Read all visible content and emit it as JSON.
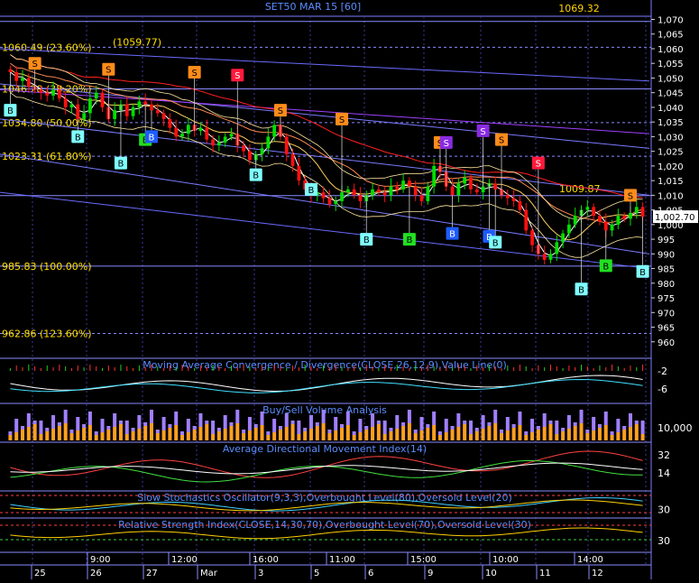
{
  "chart_data": [
    {
      "type": "candlestick",
      "title": "SET50 MAR 15   [60]",
      "top_value_label": "1069.32",
      "last_price_label": "1,002.70",
      "ylim": [
        955,
        1072
      ],
      "y_ticks": [
        "1,070",
        "1,065",
        "1,060",
        "1,055",
        "1,050",
        "1,045",
        "1,040",
        "1,035",
        "1,030",
        "1,025",
        "1,020",
        "1,015",
        "1,010",
        "1,005",
        "1,000",
        "995",
        "990",
        "985",
        "980",
        "975",
        "970",
        "965",
        "960"
      ],
      "y_tick_values": [
        1070,
        1065,
        1060,
        1055,
        1050,
        1045,
        1040,
        1035,
        1030,
        1025,
        1020,
        1015,
        1010,
        1005,
        1000,
        995,
        990,
        985,
        980,
        975,
        970,
        965,
        960
      ],
      "fib_levels": [
        {
          "label": "1060.49 (23.60%)",
          "value": 1060.49
        },
        {
          "label": "1046.28 (38.20%)",
          "value": 1046.28
        },
        {
          "label": "1034.80 (50.00%)",
          "value": 1034.8
        },
        {
          "label": "1023.31 (61.80%)",
          "value": 1023.31
        },
        {
          "label": "985.83 (100.00%)",
          "value": 985.83
        },
        {
          "label": "962.86 (123.60%)",
          "value": 962.86
        }
      ],
      "annotations": [
        {
          "label": "(1059.77)",
          "x": 40,
          "y": 1059.77
        },
        {
          "label": "1009.87",
          "x": 210,
          "y": 1009.87
        }
      ],
      "closes": [
        1052,
        1049,
        1050,
        1047,
        1046,
        1045,
        1044,
        1046,
        1043,
        1040,
        1041,
        1036,
        1038,
        1043,
        1045,
        1040,
        1036,
        1039,
        1041,
        1037,
        1040,
        1042,
        1041,
        1039,
        1038,
        1036,
        1033,
        1030,
        1031,
        1034,
        1032,
        1033,
        1029,
        1027,
        1028,
        1030,
        1031,
        1027,
        1025,
        1022,
        1024,
        1026,
        1030,
        1034,
        1030,
        1024,
        1020,
        1015,
        1012,
        1010,
        1011,
        1009,
        1007,
        1008,
        1011,
        1012,
        1010,
        1008,
        1010,
        1012,
        1011,
        1010,
        1013,
        1012,
        1015,
        1013,
        1010,
        1008,
        1013,
        1020,
        1018,
        1013,
        1010,
        1014,
        1016,
        1012,
        1011,
        1013,
        1014,
        1012,
        1010,
        1009,
        1008,
        1005,
        998,
        993,
        990,
        988,
        990,
        994,
        997,
        1000,
        1003,
        1005,
        1006,
        1003,
        1001,
        998,
        1000,
        1003,
        1002,
        1004,
        1006,
        1002.7
      ],
      "signals": [
        {
          "i": 0,
          "t": "B",
          "c": "cyan",
          "y": 1039
        },
        {
          "i": 4,
          "t": "S",
          "c": "orange",
          "y": 1055
        },
        {
          "i": 11,
          "t": "B",
          "c": "cyan",
          "y": 1030
        },
        {
          "i": 16,
          "t": "S",
          "c": "orange",
          "y": 1053
        },
        {
          "i": 18,
          "t": "B",
          "c": "cyan",
          "y": 1021
        },
        {
          "i": 22,
          "t": "B",
          "c": "green",
          "y": 1029
        },
        {
          "i": 23,
          "t": "B",
          "c": "blue",
          "y": 1030
        },
        {
          "i": 30,
          "t": "S",
          "c": "orange",
          "y": 1052
        },
        {
          "i": 37,
          "t": "S",
          "c": "red",
          "y": 1051
        },
        {
          "i": 40,
          "t": "B",
          "c": "cyan",
          "y": 1017
        },
        {
          "i": 44,
          "t": "S",
          "c": "orange",
          "y": 1039
        },
        {
          "i": 49,
          "t": "B",
          "c": "cyan",
          "y": 1012
        },
        {
          "i": 54,
          "t": "S",
          "c": "orange",
          "y": 1036
        },
        {
          "i": 58,
          "t": "B",
          "c": "cyan",
          "y": 995
        },
        {
          "i": 65,
          "t": "B",
          "c": "green",
          "y": 995
        },
        {
          "i": 70,
          "t": "S",
          "c": "orange",
          "y": 1028
        },
        {
          "i": 71,
          "t": "S",
          "c": "purple",
          "y": 1028
        },
        {
          "i": 72,
          "t": "B",
          "c": "blue",
          "y": 997
        },
        {
          "i": 77,
          "t": "S",
          "c": "purple",
          "y": 1032
        },
        {
          "i": 78,
          "t": "B",
          "c": "blue",
          "y": 996
        },
        {
          "i": 79,
          "t": "B",
          "c": "cyan",
          "y": 994
        },
        {
          "i": 80,
          "t": "S",
          "c": "orange",
          "y": 1029
        },
        {
          "i": 86,
          "t": "S",
          "c": "red",
          "y": 1021
        },
        {
          "i": 93,
          "t": "B",
          "c": "cyan",
          "y": 978
        },
        {
          "i": 97,
          "t": "B",
          "c": "green",
          "y": 986
        },
        {
          "i": 101,
          "t": "S",
          "c": "orange",
          "y": 1010
        },
        {
          "i": 103,
          "t": "B",
          "c": "cyan",
          "y": 984
        }
      ]
    },
    {
      "type": "line",
      "title": "Moving Average Convergence / Divergence(CLOSE,26,12,9),Value Line(0)",
      "y_ticks": [
        "-2",
        "-6"
      ]
    },
    {
      "type": "bar",
      "title": "Buy/Sell Volume Analysis",
      "y_ticks": [
        "10,000"
      ]
    },
    {
      "type": "line",
      "title": "Average Directional Movement Index(14)",
      "y_ticks": [
        "32",
        "14"
      ]
    },
    {
      "type": "line",
      "title": "Slow Stochastics Oscillator(9,3,3),Overbought Level(80),Oversold Level(20)",
      "y_ticks": [
        "30"
      ]
    },
    {
      "type": "line",
      "title": "Relative Strength Index(CLOSE,14,30,70),Overbought Level(70),Oversold Level(30)",
      "y_ticks": [
        "30"
      ]
    }
  ],
  "x_axis": {
    "time_labels": [
      "9:00",
      "12:00",
      "16:00",
      "11:00",
      "15:00",
      "10:00",
      "14:00"
    ],
    "date_labels": [
      "25",
      "26",
      "27",
      "Mar",
      "3",
      "5",
      "6",
      "9",
      "10",
      "11",
      "12"
    ]
  }
}
